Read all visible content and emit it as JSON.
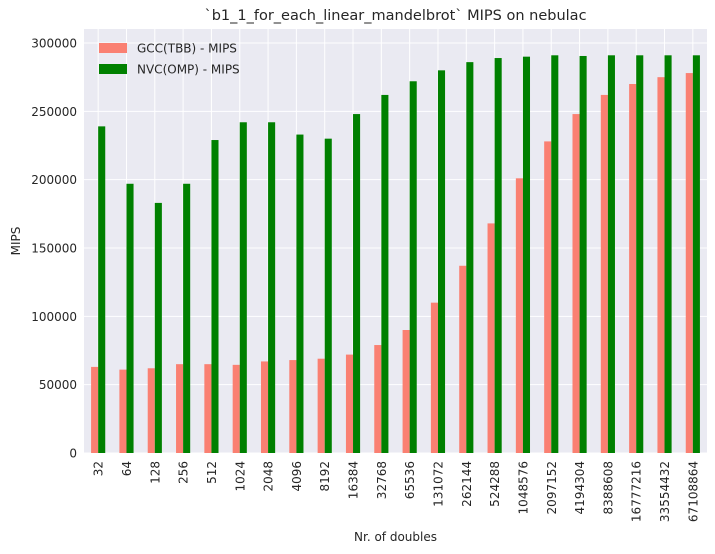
{
  "chart_data": {
    "type": "bar",
    "title": "`b1_1_for_each_linear_mandelbrot` MIPS on nebulac",
    "xlabel": "Nr. of doubles",
    "ylabel": "MIPS",
    "ylim": [
      0,
      300000
    ],
    "yticks": [
      0,
      50000,
      100000,
      150000,
      200000,
      250000,
      300000
    ],
    "grid": true,
    "legend_position": "top-left",
    "background_color": "#eaeaf2",
    "categories": [
      "32",
      "64",
      "128",
      "256",
      "512",
      "1024",
      "2048",
      "4096",
      "8192",
      "16384",
      "32768",
      "65536",
      "131072",
      "262144",
      "524288",
      "1048576",
      "2097152",
      "4194304",
      "8388608",
      "16777216",
      "33554432",
      "67108864"
    ],
    "series": [
      {
        "name": "GCC(TBB) - MIPS",
        "color": "#fa8072",
        "values": [
          63000,
          61000,
          62000,
          65000,
          65000,
          64500,
          67000,
          68000,
          69000,
          72000,
          79000,
          90000,
          110000,
          137000,
          168000,
          201000,
          228000,
          248000,
          262000,
          270000,
          275000,
          278000
        ]
      },
      {
        "name": "NVC(OMP) - MIPS",
        "color": "#008000",
        "values": [
          239000,
          197000,
          183000,
          197000,
          229000,
          242000,
          242000,
          233000,
          230000,
          248000,
          262000,
          272000,
          280000,
          286000,
          289000,
          290000,
          291000,
          290500,
          291000,
          291000,
          291000,
          291000
        ]
      }
    ]
  }
}
